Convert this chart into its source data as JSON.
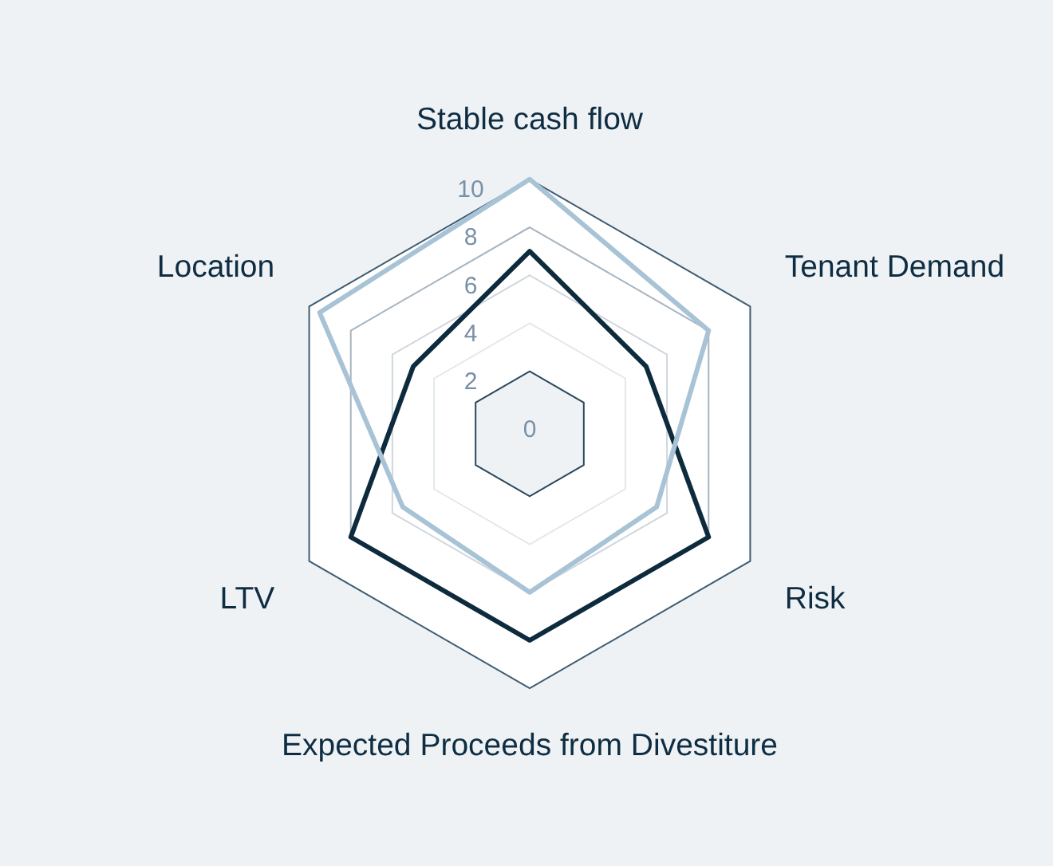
{
  "chart_data": {
    "type": "radar",
    "categories": [
      "Stable cash flow",
      "Tenant Demand",
      "Risk",
      "Expected Proceeds from Divestiture",
      "LTV",
      "Location"
    ],
    "series": [
      {
        "color": "#a9c3d6",
        "values": [
          10,
          8,
          5.5,
          6,
          5.5,
          9.5
        ]
      },
      {
        "color": "#0e2b3e",
        "values": [
          7,
          5,
          8,
          8,
          8,
          5
        ]
      }
    ],
    "ylim": [
      -0.6,
      10
    ],
    "yticks": [
      0,
      2,
      4,
      6,
      8,
      10
    ],
    "grid": true,
    "marker": "none"
  }
}
